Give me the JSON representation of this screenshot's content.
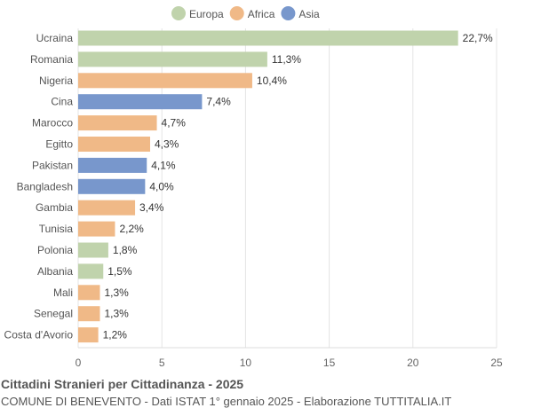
{
  "chart_data": {
    "type": "bar",
    "orientation": "horizontal",
    "title": "Cittadini Stranieri per Cittadinanza - 2025",
    "subtitle": "COMUNE DI BENEVENTO - Dati ISTAT 1° gennaio 2025 - Elaborazione TUTTITALIA.IT",
    "categories": [
      "Ucraina",
      "Romania",
      "Nigeria",
      "Cina",
      "Marocco",
      "Egitto",
      "Pakistan",
      "Bangladesh",
      "Gambia",
      "Tunisia",
      "Polonia",
      "Albania",
      "Mali",
      "Senegal",
      "Costa d'Avorio"
    ],
    "values": [
      22.7,
      11.3,
      10.4,
      7.4,
      4.7,
      4.3,
      4.1,
      4.0,
      3.4,
      2.2,
      1.8,
      1.5,
      1.3,
      1.3,
      1.2
    ],
    "labels": [
      "22,7%",
      "11,3%",
      "10,4%",
      "7,4%",
      "4,7%",
      "4,3%",
      "4,1%",
      "4,0%",
      "3,4%",
      "2,2%",
      "1,8%",
      "1,5%",
      "1,3%",
      "1,3%",
      "1,2%"
    ],
    "groups": [
      "Europa",
      "Europa",
      "Africa",
      "Asia",
      "Africa",
      "Africa",
      "Asia",
      "Asia",
      "Africa",
      "Africa",
      "Europa",
      "Europa",
      "Africa",
      "Africa",
      "Africa"
    ],
    "legend": [
      {
        "name": "Europa",
        "color": "#c0d3ac"
      },
      {
        "name": "Africa",
        "color": "#f0b987"
      },
      {
        "name": "Asia",
        "color": "#7897cc"
      }
    ],
    "legend_position": "top",
    "xlim": [
      0,
      25
    ],
    "xticks": [
      0,
      5,
      10,
      15,
      20,
      25
    ],
    "grid": true
  }
}
